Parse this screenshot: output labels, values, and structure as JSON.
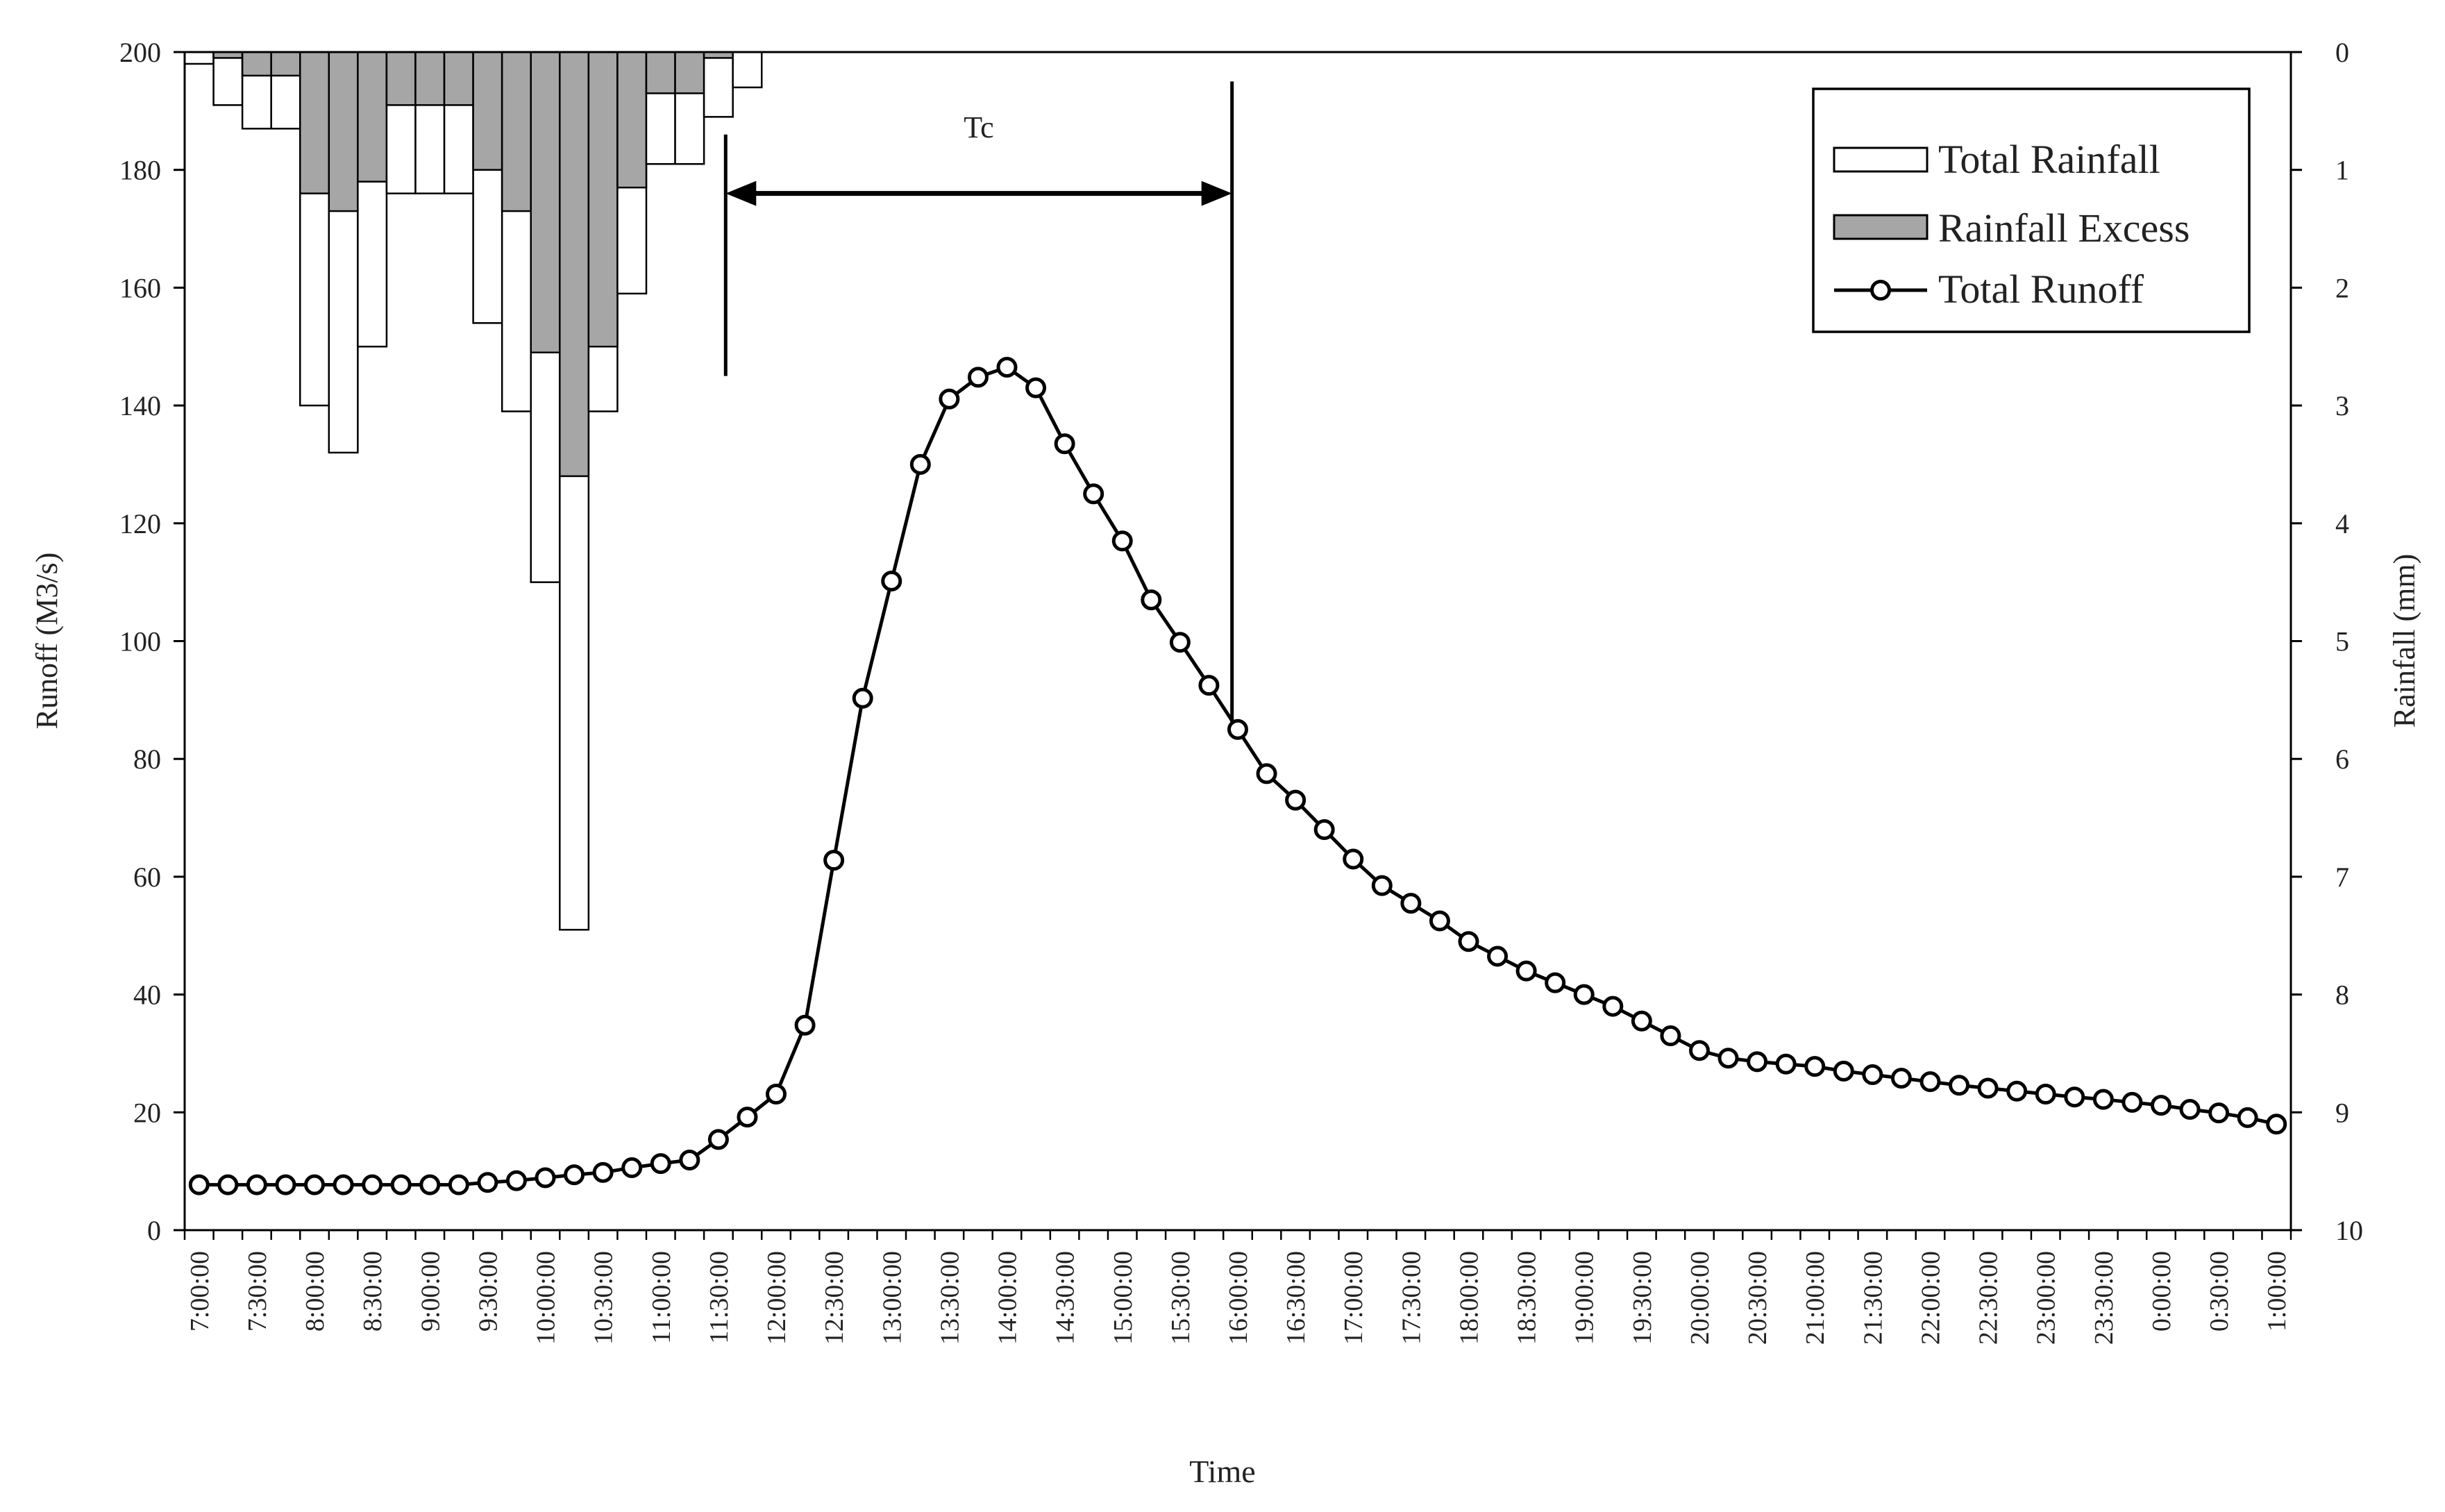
{
  "chart_data": {
    "type": "line",
    "xlabel": "Time",
    "ylabel_left": "Runoff (M3/s)",
    "ylabel_right": "Rainfall (mm)",
    "ylim_left": [
      0,
      200
    ],
    "ylim_right": [
      0,
      10
    ],
    "right_axis_inverted": true,
    "yticks_left": [
      0,
      20,
      40,
      60,
      80,
      100,
      120,
      140,
      160,
      180,
      200
    ],
    "yticks_right": [
      0,
      1,
      2,
      3,
      4,
      5,
      6,
      7,
      8,
      9,
      10
    ],
    "grid": false,
    "legend_position": "top-right",
    "x_tick_labels": [
      "7:00:00",
      "7:30:00",
      "8:00:00",
      "8:30:00",
      "9:00:00",
      "9:30:00",
      "10:00:00",
      "10:30:00",
      "11:00:00",
      "11:30:00",
      "12:00:00",
      "12:30:00",
      "13:00:00",
      "13:30:00",
      "14:00:00",
      "14:30:00",
      "15:00:00",
      "15:30:00",
      "16:00:00",
      "16:30:00",
      "17:00:00",
      "17:30:00",
      "18:00:00",
      "18:30:00",
      "19:00:00",
      "19:30:00",
      "20:00:00",
      "20:30:00",
      "21:00:00",
      "21:30:00",
      "22:00:00",
      "22:30:00",
      "23:00:00",
      "23:30:00",
      "0:00:00",
      "0:30:00",
      "1:00:00"
    ],
    "series": [
      {
        "name": "Total Rainfall",
        "kind": "bar",
        "axis": "right",
        "color": "#ffffff",
        "values": [
          0.1,
          0.45,
          0.65,
          0.65,
          3.0,
          3.4,
          2.5,
          1.2,
          1.2,
          1.2,
          2.3,
          3.05,
          4.5,
          7.45,
          3.05,
          2.05,
          0.95,
          0.95,
          0.55,
          0.3
        ]
      },
      {
        "name": "Rainfall Excess",
        "kind": "bar",
        "axis": "right",
        "color": "#a6a6a6",
        "values": [
          0.0,
          0.05,
          0.2,
          0.2,
          1.2,
          1.35,
          1.1,
          0.45,
          0.45,
          0.45,
          1.0,
          1.35,
          2.55,
          3.6,
          2.5,
          1.15,
          0.35,
          0.35,
          0.05,
          0.0
        ]
      },
      {
        "name": "Total Runoff",
        "kind": "line",
        "axis": "left",
        "color": "#000000",
        "values": [
          7.7,
          7.7,
          7.7,
          7.7,
          7.7,
          7.7,
          7.7,
          7.7,
          7.7,
          7.7,
          8.1,
          8.4,
          8.9,
          9.4,
          9.8,
          10.6,
          11.3,
          11.9,
          15.4,
          19.2,
          23.1,
          34.8,
          62.8,
          90.3,
          110.2,
          130.0,
          141.1,
          144.8,
          146.5,
          143.0,
          133.5,
          125.0,
          117.0,
          107.0,
          99.8,
          92.5,
          85.0,
          77.5,
          73.0,
          68.0,
          63.0,
          58.5,
          55.5,
          52.5,
          49.0,
          46.5,
          44.0,
          42.0,
          40.0,
          38.0,
          35.5,
          33.0,
          30.5,
          29.2,
          28.6,
          28.2,
          27.8,
          27.0,
          26.4,
          25.8,
          25.2,
          24.6,
          24.1,
          23.6,
          23.1,
          22.6,
          22.2,
          21.7,
          21.2,
          20.5,
          19.9,
          19.1,
          18.0
        ]
      }
    ],
    "annotations": [
      {
        "text": "Tc",
        "type": "double-arrow",
        "x_start": 18.75,
        "x_end": 36.3,
        "y": 176
      }
    ]
  }
}
